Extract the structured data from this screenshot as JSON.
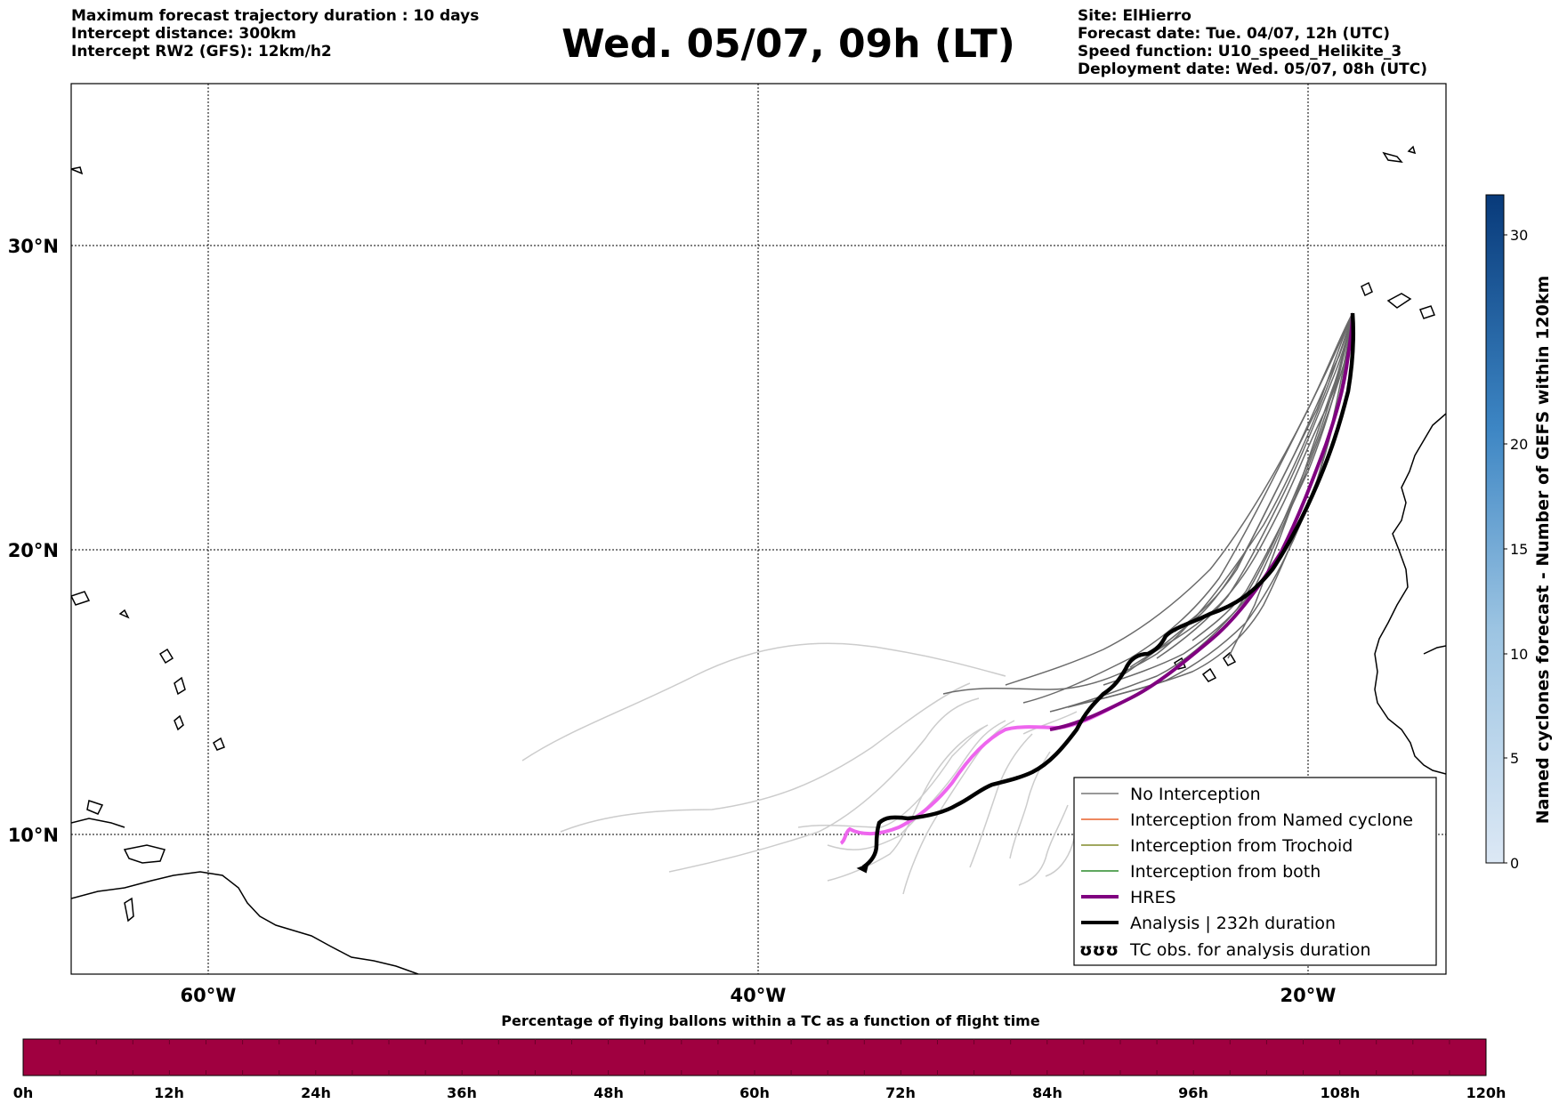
{
  "header": {
    "left_lines": [
      "Maximum forecast trajectory duration : 10 days",
      "Intercept distance: 300km",
      "Intercept RW2 (GFS):  12km/h2"
    ],
    "title": "Wed. 05/07, 09h (LT)",
    "right_lines": [
      "Site: ElHierro",
      "Forecast date: Tue. 04/07, 12h (UTC)",
      "Speed function: U10_speed_Helikite_3",
      "Deployment date: Wed. 05/07, 08h (UTC)"
    ]
  },
  "map": {
    "lon_range": [
      -65,
      15
    ],
    "lat_range": [
      5,
      34.5
    ],
    "lat_labels": [
      "30°N",
      "20°N",
      "10°N"
    ],
    "lon_labels": [
      "60°W",
      "40°W",
      "20°W"
    ]
  },
  "legend": {
    "items": [
      {
        "label": "No Interception",
        "color": "#777777"
      },
      {
        "label": "Interception from Named cyclone",
        "color": "#e8602c"
      },
      {
        "label": "Interception from Trochoid",
        "color": "#808a2a"
      },
      {
        "label": "Interception from both",
        "color": "#2a8a2a"
      },
      {
        "label": "HRES",
        "color": "#800080"
      },
      {
        "label": "Analysis | 232h duration",
        "color": "#000000"
      },
      {
        "label": "TC obs. for analysis duration",
        "color": "#000000"
      }
    ],
    "tc_symbol": "ʊʊʊ"
  },
  "right_colorbar": {
    "label": "Named cyclones forecast - Number of GEFS within 120km",
    "ticks": [
      "0",
      "5",
      "10",
      "15",
      "20",
      "30"
    ],
    "color_low": "#dce8f5",
    "color_high": "#083a7a"
  },
  "bottom_colorbar": {
    "title": "Percentage of flying ballons within a TC as a function of flight time",
    "ticks": [
      "0h",
      "12h",
      "24h",
      "36h",
      "48h",
      "60h",
      "72h",
      "84h",
      "96h",
      "108h",
      "120h"
    ],
    "color": "#a00040"
  },
  "colors": {
    "hres_trace": "#ee66ee",
    "hres_line": "#800080",
    "ensemble_light": "#cccccc",
    "ensemble_dark": "#6a6a6a"
  }
}
